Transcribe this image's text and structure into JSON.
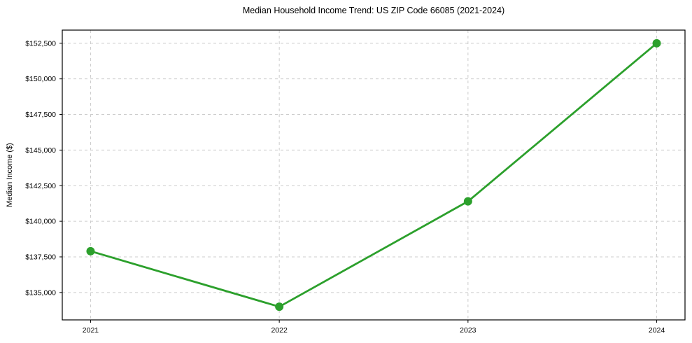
{
  "chart_data": {
    "type": "line",
    "title": "Median Household Income Trend: US ZIP Code 66085 (2021-2024)",
    "xlabel": "",
    "ylabel": "Median Income ($)",
    "x": [
      2021,
      2022,
      2023,
      2024
    ],
    "series": [
      {
        "name": "Median Household Income",
        "values": [
          137900,
          134000,
          141400,
          152500
        ]
      }
    ],
    "x_ticks": [
      2021,
      2022,
      2023,
      2024
    ],
    "x_tick_labels": [
      "2021",
      "2022",
      "2023",
      "2024"
    ],
    "y_ticks": [
      135000,
      137500,
      140000,
      142500,
      145000,
      147500,
      150000,
      152500
    ],
    "y_tick_labels": [
      "$135,000",
      "$137,500",
      "$140,000",
      "$142,500",
      "$145,000",
      "$147,500",
      "$150,000",
      "$152,500"
    ],
    "xlim": [
      2020.85,
      2024.15
    ],
    "ylim": [
      133075,
      153425
    ],
    "grid": true,
    "grid_style": "dashed",
    "legend_position": "none",
    "line_color": "#2ca02c",
    "marker": "circle",
    "grid_color": "#cccccc",
    "spine_color": "#000000",
    "background_color": "#ffffff"
  }
}
